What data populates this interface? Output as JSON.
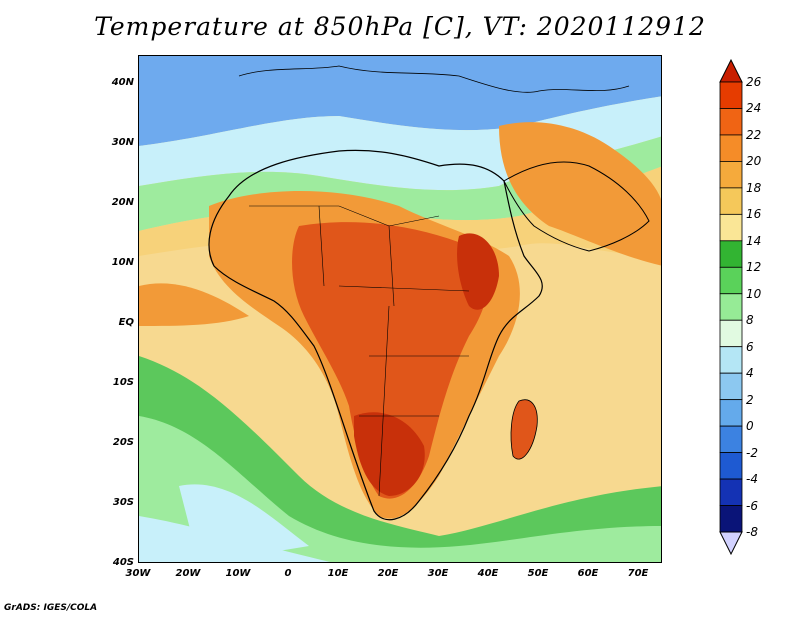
{
  "title": "Temperature at 850hPa [C], VT: 2020112912",
  "footer": "GrADS: IGES/COLA",
  "map": {
    "lat_labels": [
      "40N",
      "30N",
      "20N",
      "10N",
      "EQ",
      "10S",
      "20S",
      "30S",
      "40S"
    ],
    "lon_labels": [
      "30W",
      "20W",
      "10W",
      "0",
      "10E",
      "20E",
      "30E",
      "40E",
      "50E",
      "60E",
      "70E"
    ],
    "lon_range": [
      -30,
      75
    ],
    "lat_range": [
      -40,
      45
    ]
  },
  "colorbar": {
    "labels": [
      "26",
      "24",
      "22",
      "20",
      "18",
      "16",
      "14",
      "12",
      "10",
      "8",
      "6",
      "4",
      "2",
      "0",
      "-2",
      "-4",
      "-6",
      "-8"
    ],
    "colors": [
      "#c81e00",
      "#e63c00",
      "#f06414",
      "#f58c28",
      "#f5aa3c",
      "#f5c85a",
      "#fae696",
      "#32b432",
      "#5ad25a",
      "#96eb96",
      "#e1fae1",
      "#b4e6f5",
      "#8cc8f0",
      "#64aaeb",
      "#3c82e1",
      "#1e5ad2",
      "#1432b4",
      "#0a1478",
      "#d2d2ff"
    ]
  },
  "legend": {
    "warm": "#e0561a",
    "hot": "#c8300a",
    "orange": "#f29a38",
    "yellow": "#f7d27a",
    "green": "#5cc85c",
    "light_green": "#9eeb9e",
    "cyan": "#c8f0fa",
    "blue": "#6eaaee",
    "deep_blue": "#2e6ade"
  }
}
